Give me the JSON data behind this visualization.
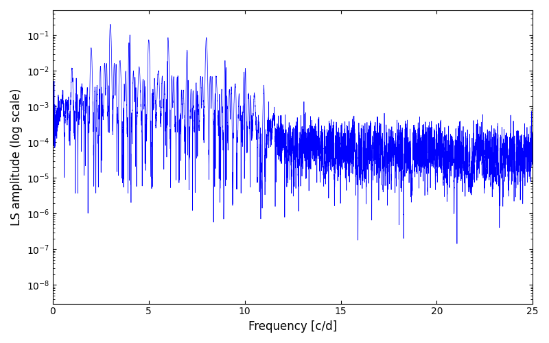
{
  "xlabel": "Frequency [c/d]",
  "ylabel": "LS amplitude (log scale)",
  "line_color": "blue",
  "xlim": [
    0,
    25
  ],
  "ylim": [
    3e-09,
    0.5
  ],
  "figsize": [
    8.0,
    5.0
  ],
  "dpi": 100,
  "seed": 12345,
  "n_points": 8000,
  "freq_max": 25.0
}
